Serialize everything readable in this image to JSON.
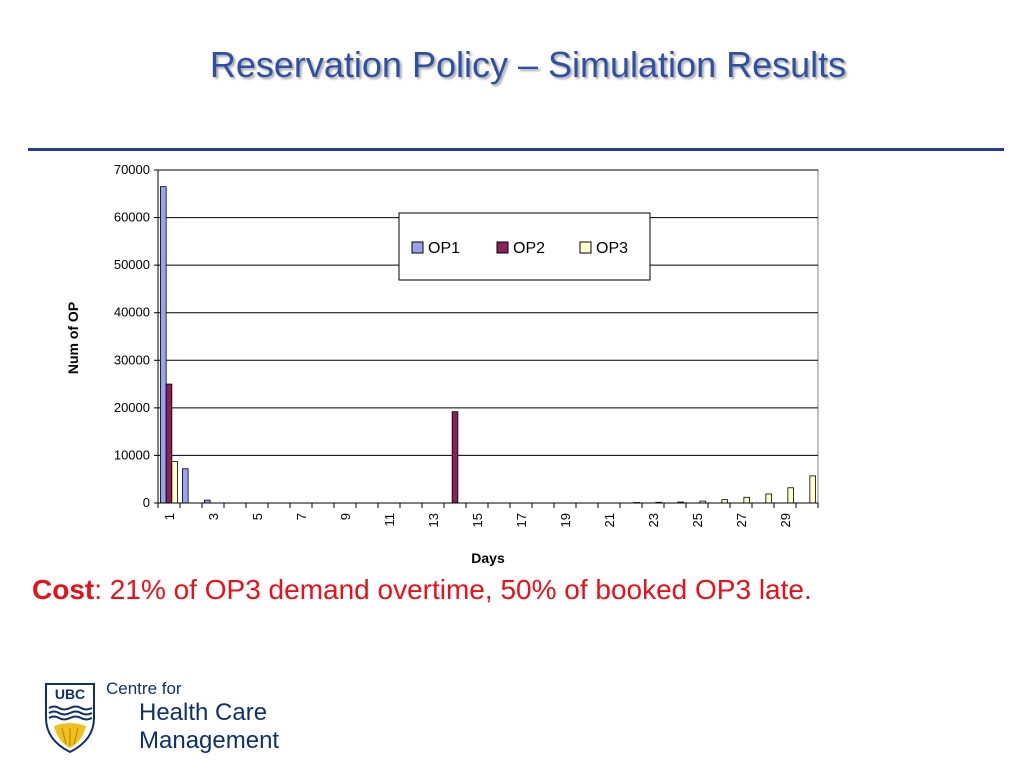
{
  "slide": {
    "title": "Reservation Policy – Simulation Results",
    "caption_bold": "Cost",
    "caption_rest": ": 21% of OP3 demand overtime, 50% of booked OP3 late."
  },
  "logo": {
    "badge_text": "UBC",
    "line1": "Centre for",
    "line2": "Health Care",
    "line3": "Management"
  },
  "colors": {
    "title": "#2e4fa3",
    "rule": "#2e3a9a",
    "caption": "#e8101a",
    "op1": "#9aa3f0",
    "op2": "#8b2257",
    "op3": "#ffffcc"
  },
  "chart_data": {
    "type": "bar",
    "title": "",
    "xlabel": "Days",
    "ylabel": "Num of OP",
    "ylim": [
      0,
      70000
    ],
    "yticks": [
      0,
      10000,
      20000,
      30000,
      40000,
      50000,
      60000,
      70000
    ],
    "xtick_labels": [
      "1",
      "3",
      "5",
      "7",
      "9",
      "11",
      "13",
      "15",
      "17",
      "19",
      "21",
      "23",
      "25",
      "27",
      "29"
    ],
    "grid": true,
    "legend_position": "top-center",
    "categories": [
      1,
      2,
      3,
      4,
      5,
      6,
      7,
      8,
      9,
      10,
      11,
      12,
      13,
      14,
      15,
      16,
      17,
      18,
      19,
      20,
      21,
      22,
      23,
      24,
      25,
      26,
      27,
      28,
      29,
      30
    ],
    "series": [
      {
        "name": "OP1",
        "values": [
          66500,
          7200,
          600,
          0,
          0,
          0,
          0,
          0,
          0,
          0,
          0,
          0,
          0,
          0,
          0,
          0,
          0,
          0,
          0,
          0,
          0,
          0,
          0,
          0,
          0,
          0,
          0,
          0,
          0,
          0
        ]
      },
      {
        "name": "OP2",
        "values": [
          25000,
          0,
          0,
          0,
          0,
          0,
          0,
          0,
          0,
          0,
          0,
          0,
          0,
          19200,
          0,
          0,
          0,
          0,
          0,
          0,
          0,
          0,
          0,
          0,
          0,
          0,
          0,
          0,
          0,
          0
        ]
      },
      {
        "name": "OP3",
        "values": [
          8700,
          0,
          0,
          0,
          0,
          0,
          0,
          0,
          0,
          0,
          0,
          0,
          0,
          0,
          0,
          0,
          0,
          0,
          0,
          0,
          0,
          100,
          150,
          200,
          400,
          700,
          1200,
          1900,
          3200,
          5700
        ]
      }
    ]
  }
}
